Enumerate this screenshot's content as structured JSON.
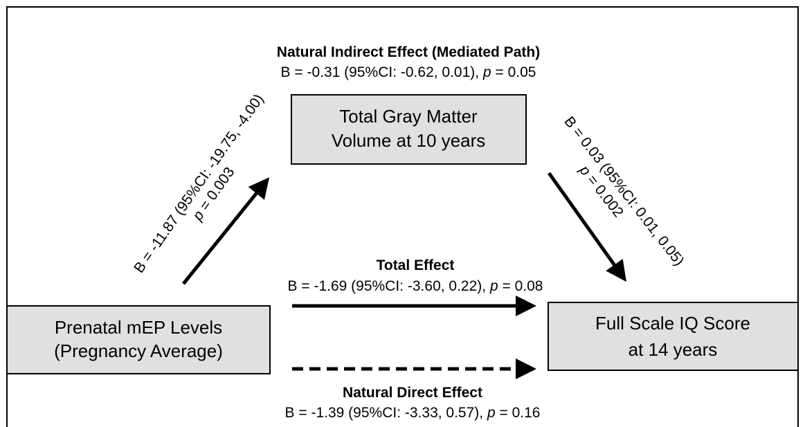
{
  "indirect": {
    "title": "Natural Indirect Effect (Mediated Path)",
    "stat": {
      "before": "B = -0.31 (95%CI: -0.62, 0.01), ",
      "p": "p",
      "after": " = 0.05"
    }
  },
  "total": {
    "title": "Total Effect",
    "stat": {
      "before": "B = -1.69 (95%CI: -3.60, 0.22), ",
      "p": "p",
      "after": " = 0.08"
    }
  },
  "direct": {
    "title": "Natural Direct Effect",
    "stat": {
      "before": "B = -1.39 (95%CI: -3.33, 0.57), ",
      "p": "p",
      "after": " = 0.16"
    }
  },
  "path_a": {
    "estimate": "B = -11.87 (95%CI: -19.75, -4.00)",
    "p": "p",
    "p_after": " = 0.003"
  },
  "path_b": {
    "estimate": "B = 0.03 (95%CI: 0.01, 0.05)",
    "p": "p",
    "p_after": " = 0.002"
  },
  "nodes": [
    {
      "lines": [
        "Total Gray Matter",
        "Volume at 10 years"
      ]
    },
    {
      "lines": [
        "Prenatal mEP Levels",
        "(Pregnancy Average)"
      ]
    },
    {
      "lines": [
        "Full Scale IQ Score",
        "at 14 years"
      ]
    }
  ]
}
